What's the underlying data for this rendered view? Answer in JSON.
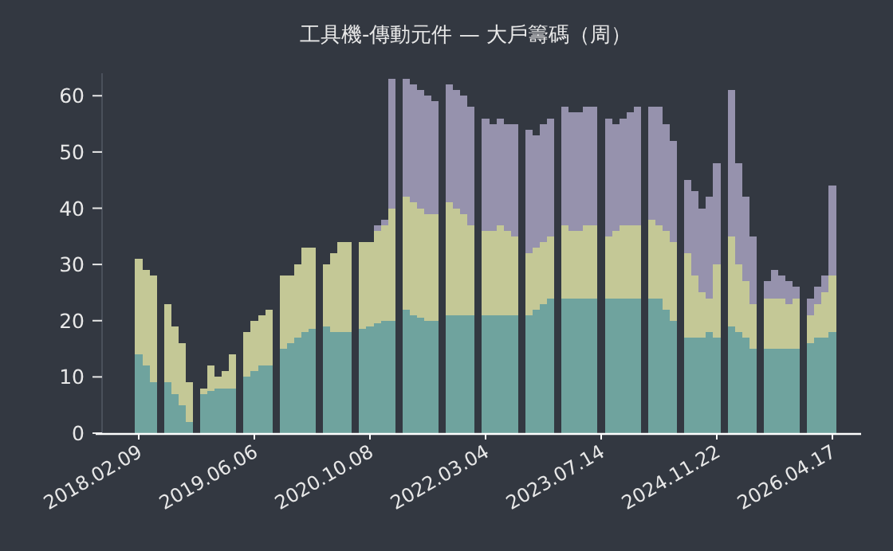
{
  "chart_data": {
    "type": "bar",
    "title": "工具機-傳動元件 — 大戶籌碼（周）",
    "stacked": true,
    "legend": false,
    "grid": false,
    "ylim": [
      0,
      64
    ],
    "yticks": [
      0,
      10,
      20,
      30,
      40,
      50,
      60
    ],
    "categories": [
      "2018.02.09",
      null,
      null,
      null,
      null,
      null,
      null,
      null,
      null,
      null,
      null,
      null,
      null,
      null,
      null,
      null,
      "2019.06.06",
      null,
      null,
      null,
      null,
      null,
      null,
      null,
      null,
      null,
      null,
      null,
      null,
      null,
      null,
      null,
      "2020.10.08",
      null,
      null,
      null,
      null,
      null,
      null,
      null,
      null,
      null,
      null,
      null,
      null,
      null,
      null,
      null,
      "2022.03.04",
      null,
      null,
      null,
      null,
      null,
      null,
      null,
      null,
      null,
      null,
      null,
      null,
      null,
      null,
      null,
      "2023.07.14",
      null,
      null,
      null,
      null,
      null,
      null,
      null,
      null,
      null,
      null,
      null,
      null,
      null,
      null,
      null,
      "2024.11.22",
      null,
      null,
      null,
      null,
      null,
      null,
      null,
      null,
      null,
      null,
      null,
      null,
      null,
      null,
      null,
      "2026.04.17"
    ],
    "series": [
      {
        "color": "#6fa39e",
        "values": [
          14,
          12,
          9,
          null,
          9,
          7,
          5,
          2,
          null,
          7,
          7.5,
          8,
          8,
          8,
          null,
          10,
          11,
          12,
          12,
          null,
          15,
          16,
          17,
          18,
          18.5,
          null,
          19,
          18,
          18,
          18,
          null,
          18.5,
          19,
          19.5,
          20,
          20,
          null,
          22,
          21,
          20.5,
          20,
          20,
          null,
          21,
          21,
          21,
          21,
          null,
          21,
          21,
          21,
          21,
          21,
          null,
          21,
          22,
          23,
          24,
          null,
          24,
          24,
          24,
          24,
          24,
          null,
          24,
          24,
          24,
          24,
          24,
          null,
          24,
          24,
          22,
          20,
          null,
          17,
          17,
          17,
          18,
          17,
          null,
          19,
          18,
          17,
          15,
          null,
          15,
          15,
          15,
          15,
          15,
          null,
          16,
          17,
          17,
          18
        ]
      },
      {
        "color": "#c4c896",
        "values": [
          17,
          17,
          19,
          null,
          14,
          12,
          11,
          7,
          null,
          1,
          4.5,
          2,
          3,
          6,
          null,
          8,
          9,
          9,
          10,
          null,
          13,
          12,
          13,
          15,
          14.5,
          null,
          11,
          14,
          16,
          16,
          null,
          15.5,
          15,
          16.5,
          17,
          20,
          null,
          20,
          20,
          19.5,
          19,
          19,
          null,
          20,
          19,
          18,
          16,
          null,
          15,
          15,
          16,
          15,
          14,
          null,
          11,
          11,
          11,
          11,
          null,
          13,
          12,
          12,
          13,
          13,
          null,
          11,
          12,
          13,
          13,
          13,
          null,
          14,
          13,
          14,
          14,
          null,
          15,
          11,
          8,
          6,
          13,
          null,
          16,
          12,
          10,
          8,
          null,
          9,
          9,
          9,
          8,
          9,
          null,
          5,
          6,
          8,
          10
        ]
      },
      {
        "color": "#9692ad",
        "values": [
          null,
          null,
          null,
          null,
          null,
          null,
          null,
          null,
          null,
          null,
          null,
          null,
          null,
          null,
          null,
          null,
          null,
          null,
          null,
          null,
          null,
          null,
          null,
          null,
          null,
          null,
          null,
          null,
          null,
          null,
          null,
          null,
          null,
          1,
          1,
          23,
          null,
          21,
          21,
          21,
          21,
          20,
          null,
          21,
          21,
          21,
          21,
          null,
          20,
          19,
          19,
          19,
          20,
          null,
          22,
          20,
          21,
          21,
          null,
          21,
          21,
          21,
          21,
          21,
          null,
          21,
          19,
          19,
          20,
          21,
          null,
          20,
          21,
          19,
          18,
          null,
          13,
          15,
          15,
          18,
          18,
          null,
          26,
          18,
          15,
          12,
          null,
          3,
          5,
          4,
          4,
          2,
          null,
          3,
          3,
          3,
          16
        ]
      }
    ]
  }
}
